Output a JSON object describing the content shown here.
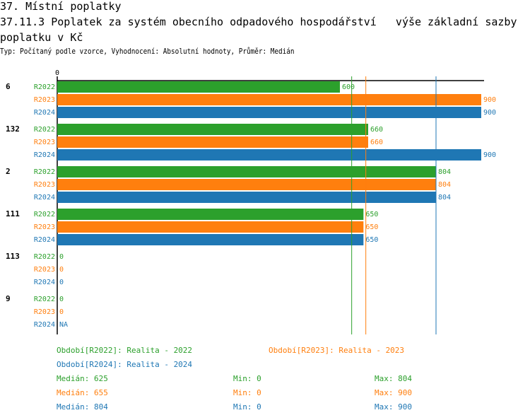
{
  "header": {
    "section": "37. Místní poplatky",
    "title": "37.11.3 Poplatek za systém obecního odpadového hospodářství   výše základní sazby  poplatku v Kč",
    "subtitle": "Typ: Počítaný podle vzorce, Vyhodnocení: Absolutní hodnoty, Průměr: Medián"
  },
  "chart_data": {
    "type": "bar",
    "orientation": "horizontal",
    "xlim": [
      0,
      900
    ],
    "x_tick_labels": [
      "0"
    ],
    "categories": [
      "6",
      "132",
      "2",
      "111",
      "113",
      "9"
    ],
    "series": [
      {
        "name": "R2022",
        "color": "#2ca02c",
        "values": [
          600,
          660,
          804,
          650,
          0,
          0
        ],
        "labels": [
          "600",
          "660",
          "804",
          "650",
          "0",
          "0"
        ]
      },
      {
        "name": "R2023",
        "color": "#ff7f0e",
        "values": [
          900,
          660,
          804,
          650,
          0,
          0
        ],
        "labels": [
          "900",
          "660",
          "804",
          "650",
          "0",
          "0"
        ]
      },
      {
        "name": "R2024",
        "color": "#1f77b4",
        "values": [
          900,
          900,
          804,
          650,
          0,
          null
        ],
        "labels": [
          "900",
          "900",
          "804",
          "650",
          "0",
          "NA"
        ]
      }
    ],
    "median_lines": [
      {
        "series": "R2022",
        "value": 625
      },
      {
        "series": "R2023",
        "value": 655
      },
      {
        "series": "R2024",
        "value": 804
      }
    ]
  },
  "legend": {
    "periods": [
      "Období[R2022]: Realita - 2022",
      "Období[R2023]: Realita - 2023",
      "Období[R2024]: Realita - 2024"
    ],
    "stats": [
      {
        "median": "Medián: 625",
        "min": "Min: 0",
        "max": "Max: 804"
      },
      {
        "median": "Medián: 655",
        "min": "Min: 0",
        "max": "Max: 900"
      },
      {
        "median": "Medián: 804",
        "min": "Min: 0",
        "max": "Max: 900"
      }
    ]
  }
}
